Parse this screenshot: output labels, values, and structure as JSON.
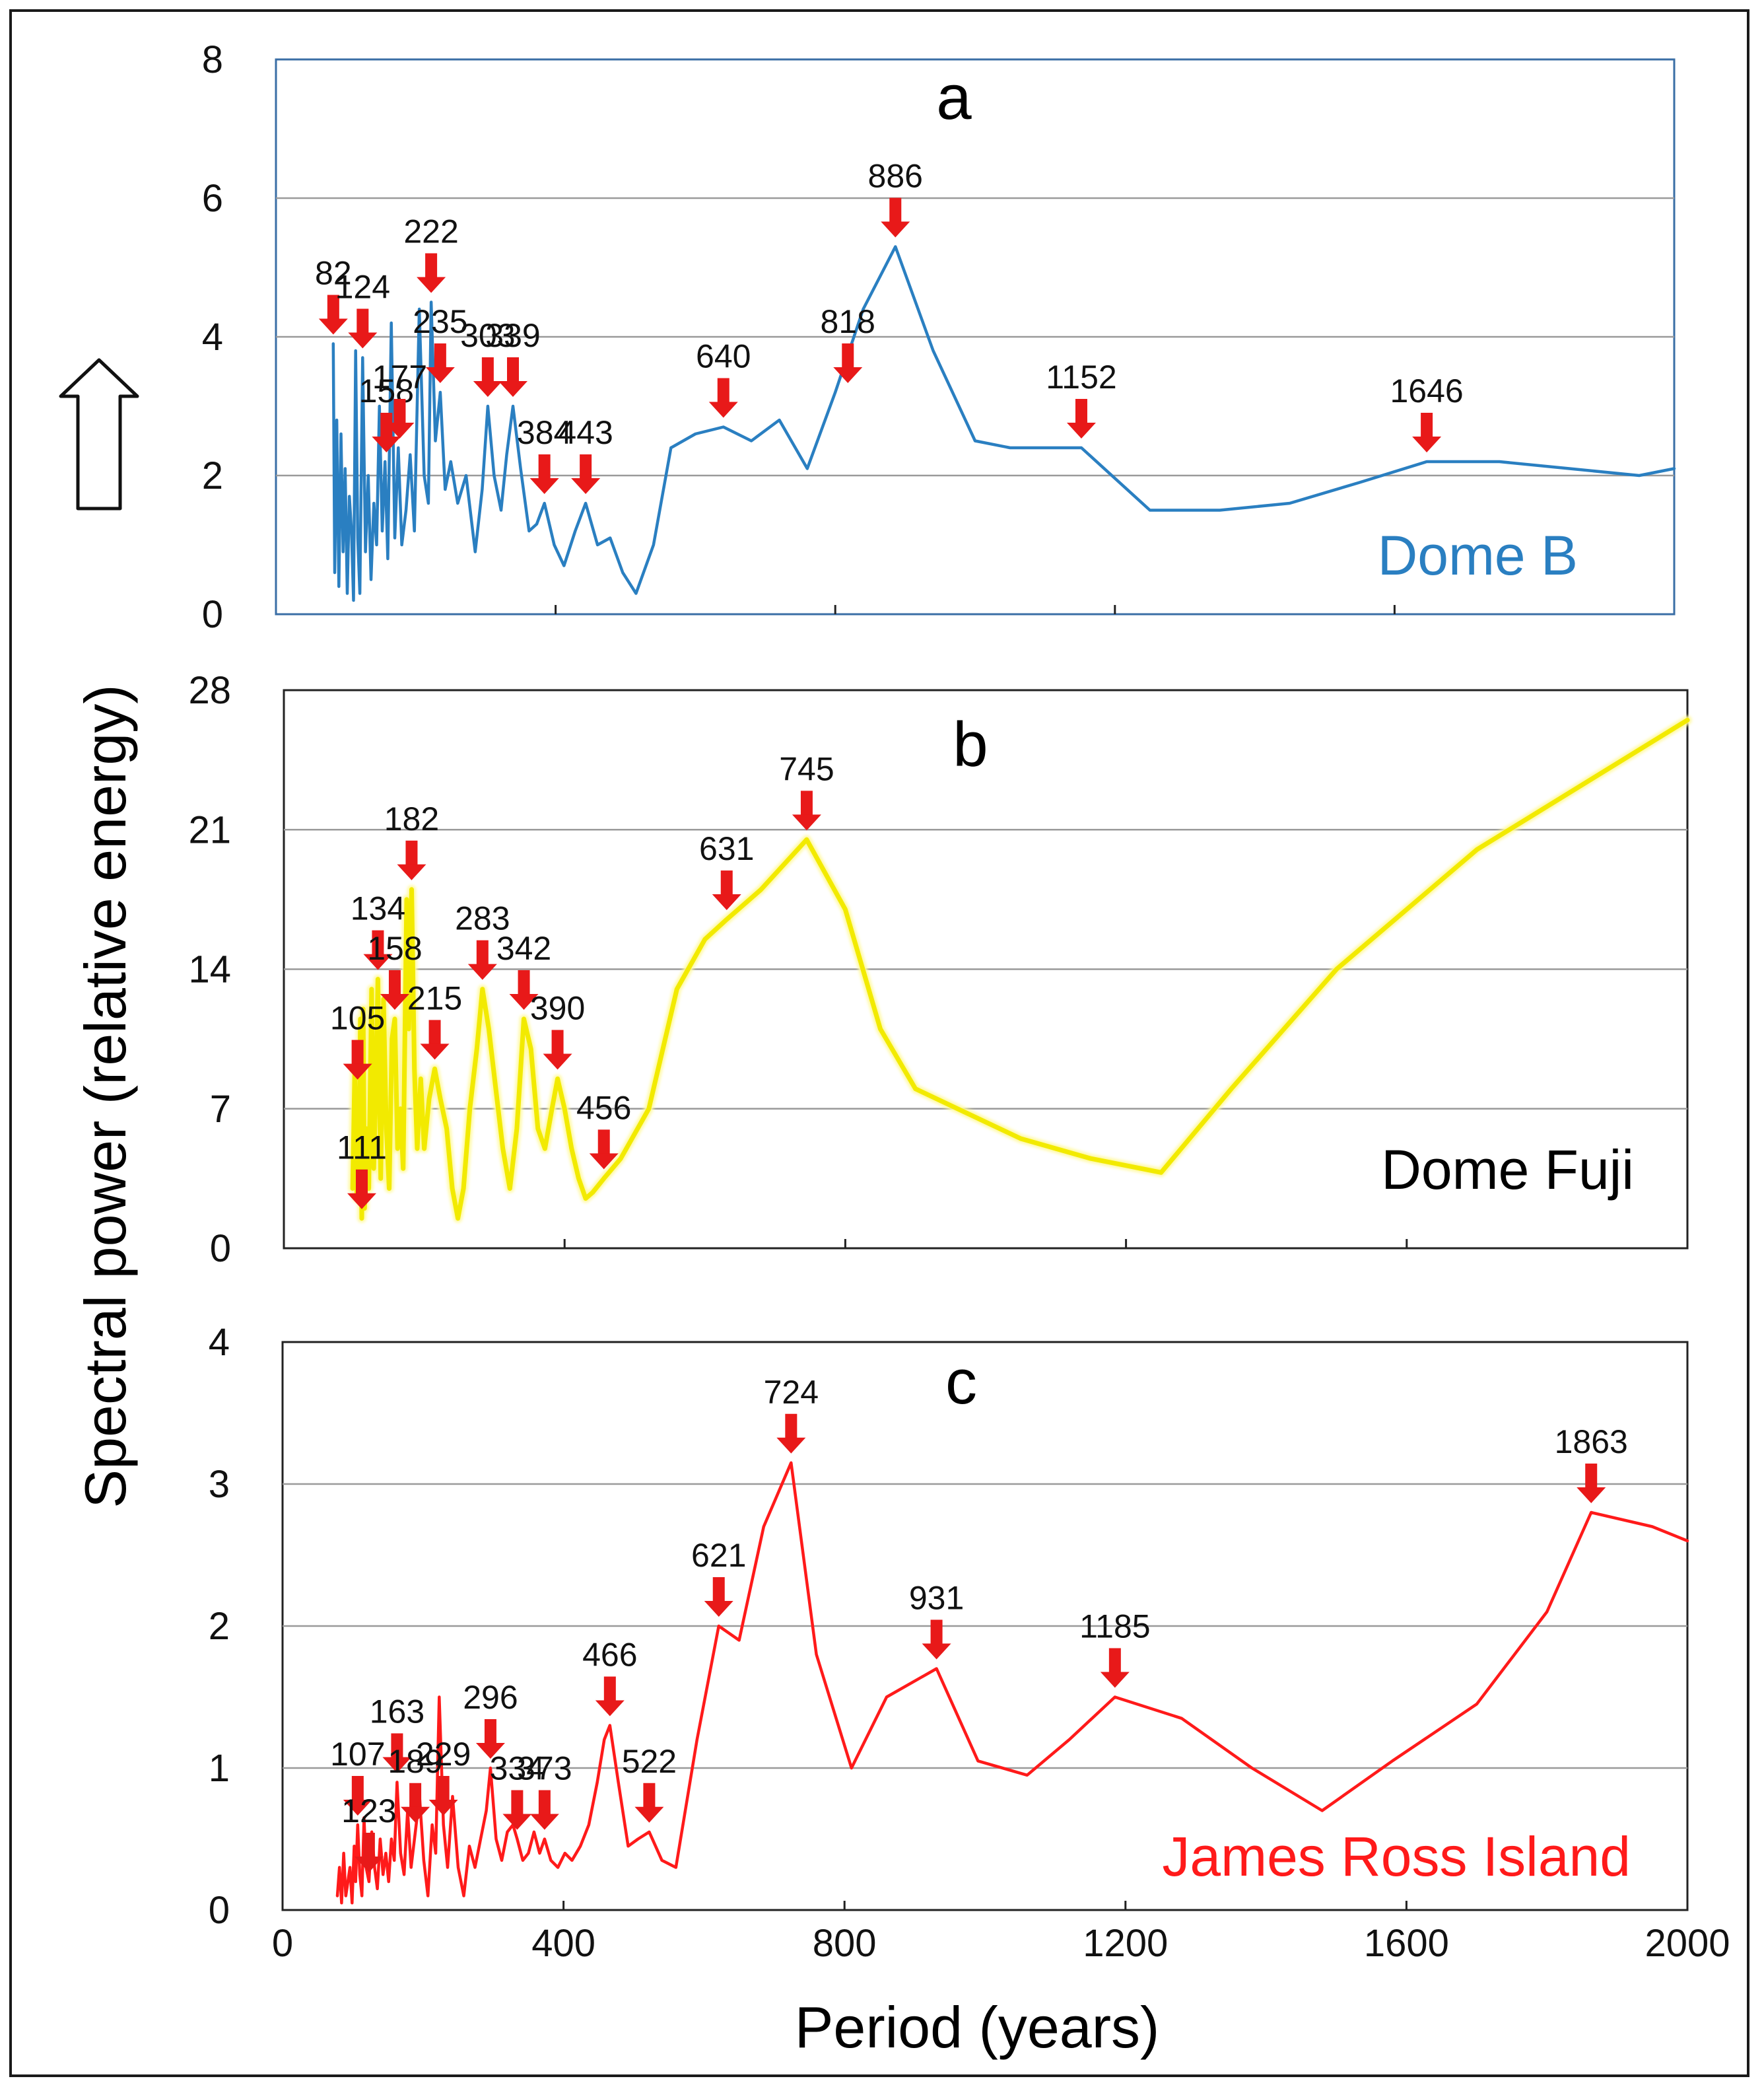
{
  "figure": {
    "ylabel": "Spectral power (relative energy)",
    "xlabel": "Period (years)"
  },
  "chart_data": [
    {
      "type": "line",
      "panel": "a",
      "site": "Dome B",
      "color": "#2a7fc1",
      "ylim": [
        0,
        8
      ],
      "yticks": [
        "0",
        "2",
        "4",
        "6",
        "8"
      ],
      "xlim": [
        0,
        2000
      ],
      "xticks": [
        0,
        400,
        800,
        1200,
        1600,
        2000
      ],
      "xticklabels": [],
      "grid": true,
      "x": [
        82,
        84,
        87,
        90,
        93,
        96,
        99,
        102,
        105,
        108,
        111,
        114,
        117,
        120,
        124,
        128,
        132,
        136,
        140,
        144,
        148,
        152,
        156,
        160,
        165,
        170,
        175,
        180,
        186,
        192,
        198,
        205,
        212,
        218,
        222,
        228,
        235,
        242,
        250,
        260,
        272,
        285,
        295,
        303,
        312,
        322,
        330,
        339,
        350,
        362,
        373,
        384,
        398,
        412,
        428,
        443,
        460,
        478,
        496,
        515,
        540,
        565,
        600,
        640,
        680,
        720,
        760,
        800,
        840,
        886,
        940,
        1000,
        1050,
        1100,
        1152,
        1250,
        1350,
        1450,
        1550,
        1646,
        1750,
        1850,
        1950,
        2000
      ],
      "values": [
        3.9,
        0.6,
        2.8,
        0.4,
        2.6,
        0.9,
        2.1,
        0.3,
        1.7,
        1.2,
        0.2,
        3.8,
        1.1,
        0.3,
        3.7,
        0.9,
        2.0,
        0.5,
        1.6,
        1.0,
        3.0,
        1.2,
        2.2,
        0.8,
        4.2,
        1.1,
        2.4,
        1.0,
        1.5,
        2.3,
        1.2,
        4.4,
        2.0,
        1.6,
        4.5,
        2.5,
        3.2,
        1.8,
        2.2,
        1.6,
        2.0,
        0.9,
        1.8,
        3.0,
        2.0,
        1.5,
        2.3,
        3.0,
        2.1,
        1.2,
        1.3,
        1.6,
        1.0,
        0.7,
        1.2,
        1.6,
        1.0,
        1.1,
        0.6,
        0.3,
        1.0,
        2.4,
        2.6,
        2.7,
        2.5,
        2.8,
        2.1,
        3.2,
        4.4,
        5.3,
        3.8,
        2.5,
        2.4,
        2.4,
        2.4,
        1.5,
        1.5,
        1.6,
        1.9,
        2.2,
        2.2,
        2.1,
        2.0,
        2.1
      ],
      "peaks": [
        82,
        124,
        158,
        177,
        222,
        235,
        303,
        339,
        384,
        443,
        640,
        818,
        886,
        1152,
        1646
      ]
    },
    {
      "type": "line",
      "panel": "b",
      "site": "Dome Fuji",
      "color": "#f2ea00",
      "ylim": [
        0,
        28
      ],
      "yticks": [
        "0",
        "7",
        "14",
        "21",
        "28"
      ],
      "xlim": [
        0,
        2000
      ],
      "xticks": [
        0,
        400,
        800,
        1200,
        1600,
        2000
      ],
      "xticklabels": [],
      "grid": true,
      "x": [
        98,
        101,
        104,
        105,
        107,
        109,
        111,
        113,
        115,
        118,
        121,
        125,
        128,
        131,
        134,
        138,
        142,
        146,
        150,
        154,
        158,
        162,
        166,
        170,
        175,
        178,
        182,
        186,
        190,
        195,
        200,
        207,
        215,
        223,
        232,
        240,
        248,
        256,
        265,
        275,
        283,
        292,
        302,
        312,
        322,
        332,
        342,
        352,
        362,
        372,
        382,
        390,
        400,
        410,
        420,
        430,
        440,
        456,
        480,
        520,
        560,
        600,
        631,
        680,
        745,
        800,
        850,
        900,
        960,
        1050,
        1150,
        1250,
        1350,
        1500,
        1700,
        2000
      ],
      "values": [
        3.0,
        9.0,
        2.5,
        8.0,
        4.0,
        11.5,
        1.5,
        12.0,
        2.0,
        6.0,
        3.0,
        13.0,
        4.0,
        8.0,
        13.5,
        3.5,
        12.5,
        6.0,
        3.0,
        10.5,
        11.5,
        5.0,
        7.0,
        4.0,
        17.5,
        11.0,
        18.0,
        9.0,
        5.0,
        8.5,
        5.0,
        7.5,
        9.0,
        7.5,
        6.0,
        3.0,
        1.5,
        3.0,
        7.0,
        10.0,
        13.0,
        11.0,
        8.0,
        5.0,
        3.0,
        6.0,
        11.5,
        10.0,
        6.0,
        5.0,
        7.0,
        8.5,
        7.0,
        5.0,
        3.5,
        2.5,
        2.8,
        3.5,
        4.5,
        7.0,
        13.0,
        15.5,
        16.5,
        18.0,
        20.5,
        17.0,
        11.0,
        8.0,
        7.0,
        5.5,
        4.5,
        3.8,
        8.0,
        14.0,
        20.0,
        26.5
      ],
      "peaks": [
        105,
        111,
        134,
        158,
        182,
        215,
        283,
        342,
        390,
        456,
        631,
        745
      ]
    },
    {
      "type": "line",
      "panel": "c",
      "site": "James Ross Island",
      "color": "#ff1a1a",
      "ylim": [
        0,
        4
      ],
      "yticks": [
        "0",
        "1",
        "2",
        "3",
        "4"
      ],
      "xlim": [
        0,
        2000
      ],
      "xticks": [
        0,
        400,
        800,
        1200,
        1600,
        2000
      ],
      "xticklabels": [
        "0",
        "400",
        "800",
        "1200",
        "1600",
        "2000"
      ],
      "grid": true,
      "x": [
        78,
        81,
        84,
        87,
        90,
        93,
        96,
        99,
        102,
        104,
        107,
        110,
        113,
        116,
        119,
        123,
        127,
        131,
        135,
        139,
        143,
        147,
        151,
        155,
        159,
        163,
        168,
        173,
        178,
        183,
        189,
        195,
        201,
        207,
        213,
        218,
        223,
        229,
        235,
        242,
        250,
        258,
        266,
        274,
        282,
        290,
        296,
        304,
        312,
        320,
        328,
        334,
        342,
        350,
        358,
        366,
        373,
        382,
        392,
        402,
        412,
        424,
        436,
        448,
        458,
        466,
        478,
        492,
        506,
        522,
        540,
        560,
        590,
        621,
        650,
        685,
        724,
        760,
        810,
        860,
        931,
        990,
        1060,
        1120,
        1185,
        1280,
        1380,
        1480,
        1580,
        1700,
        1800,
        1863,
        1950,
        2000
      ],
      "values": [
        0.1,
        0.3,
        0.05,
        0.4,
        0.1,
        0.2,
        0.3,
        0.05,
        0.45,
        0.2,
        0.6,
        0.25,
        0.1,
        0.65,
        0.3,
        0.2,
        0.55,
        0.3,
        0.15,
        0.5,
        0.25,
        0.4,
        0.2,
        0.5,
        0.35,
        0.9,
        0.4,
        0.25,
        0.7,
        0.3,
        0.55,
        0.8,
        0.35,
        0.1,
        0.6,
        0.4,
        1.5,
        0.6,
        0.3,
        0.8,
        0.3,
        0.1,
        0.45,
        0.3,
        0.5,
        0.7,
        1.0,
        0.5,
        0.35,
        0.55,
        0.6,
        0.5,
        0.35,
        0.4,
        0.55,
        0.4,
        0.5,
        0.35,
        0.3,
        0.4,
        0.35,
        0.45,
        0.6,
        0.9,
        1.2,
        1.3,
        0.9,
        0.45,
        0.5,
        0.55,
        0.35,
        0.3,
        1.2,
        2.0,
        1.9,
        2.7,
        3.15,
        1.8,
        1.0,
        1.5,
        1.7,
        1.05,
        0.95,
        1.2,
        1.5,
        1.35,
        1.0,
        0.7,
        1.05,
        1.45,
        2.1,
        2.8,
        2.7,
        2.6
      ],
      "peaks": [
        107,
        123,
        163,
        189,
        229,
        296,
        334,
        373,
        466,
        522,
        621,
        724,
        931,
        1185,
        1863
      ]
    }
  ]
}
